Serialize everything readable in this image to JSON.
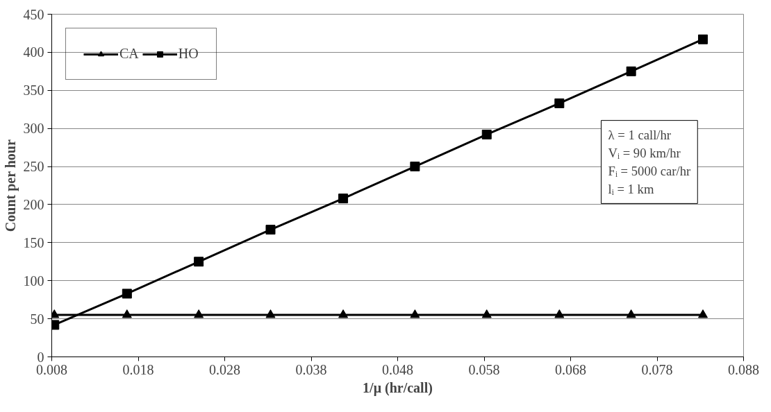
{
  "chart_data": {
    "type": "line",
    "xlabel": "1/μ (hr/call)",
    "ylabel": "Count per hour",
    "x": [
      0.0083,
      0.0167,
      0.025,
      0.0333,
      0.0417,
      0.05,
      0.0583,
      0.0667,
      0.075,
      0.0833
    ],
    "series": [
      {
        "name": "CA",
        "color": "#000000",
        "marker": "triangle",
        "values": [
          55,
          55,
          55,
          55,
          55,
          55,
          55,
          55,
          55,
          55
        ]
      },
      {
        "name": "HO",
        "color": "#000000",
        "marker": "square",
        "values": [
          42,
          83,
          125,
          167,
          208,
          250,
          292,
          333,
          375,
          417
        ]
      }
    ],
    "xlim": [
      0.008,
      0.088
    ],
    "xticks": [
      0.008,
      0.018,
      0.028,
      0.038,
      0.048,
      0.058,
      0.068,
      0.078,
      0.088
    ],
    "ylim": [
      0,
      450
    ],
    "yticks": [
      0,
      50,
      100,
      150,
      200,
      250,
      300,
      350,
      400,
      450
    ],
    "grid": "y",
    "legend": "top left",
    "line_style": "solid",
    "annotations": [
      "λ = 1 call/hr",
      "Vᵢ = 90 km/hr",
      "Fᵢ = 5000 car/hr",
      "lᵢ = 1 km"
    ]
  }
}
